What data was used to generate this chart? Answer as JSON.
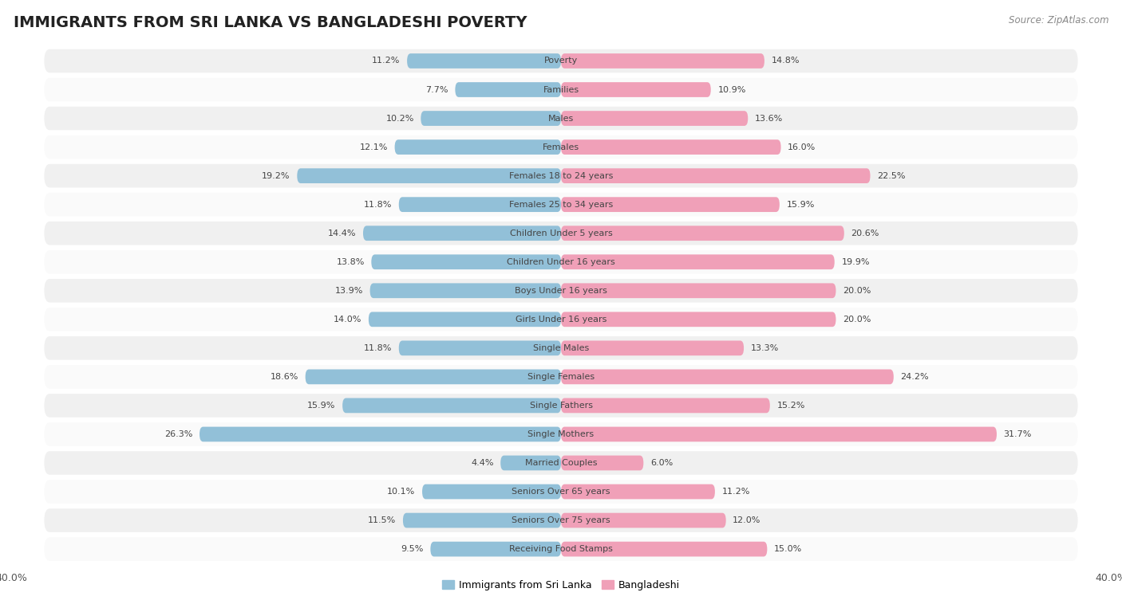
{
  "title": "IMMIGRANTS FROM SRI LANKA VS BANGLADESHI POVERTY",
  "source": "Source: ZipAtlas.com",
  "categories": [
    "Poverty",
    "Families",
    "Males",
    "Females",
    "Females 18 to 24 years",
    "Females 25 to 34 years",
    "Children Under 5 years",
    "Children Under 16 years",
    "Boys Under 16 years",
    "Girls Under 16 years",
    "Single Males",
    "Single Females",
    "Single Fathers",
    "Single Mothers",
    "Married Couples",
    "Seniors Over 65 years",
    "Seniors Over 75 years",
    "Receiving Food Stamps"
  ],
  "sri_lanka": [
    11.2,
    7.7,
    10.2,
    12.1,
    19.2,
    11.8,
    14.4,
    13.8,
    13.9,
    14.0,
    11.8,
    18.6,
    15.9,
    26.3,
    4.4,
    10.1,
    11.5,
    9.5
  ],
  "bangladeshi": [
    14.8,
    10.9,
    13.6,
    16.0,
    22.5,
    15.9,
    20.6,
    19.9,
    20.0,
    20.0,
    13.3,
    24.2,
    15.2,
    31.7,
    6.0,
    11.2,
    12.0,
    15.0
  ],
  "sri_lanka_color": "#92c0d8",
  "bangladeshi_color": "#f0a0b8",
  "row_bg_even": "#f0f0f0",
  "row_bg_odd": "#fafafa",
  "background_color": "#ffffff",
  "xlim": 40.0,
  "bar_height": 0.52,
  "label_fontsize": 8.0,
  "value_fontsize": 8.0,
  "title_fontsize": 14,
  "legend_label_sri": "Immigrants from Sri Lanka",
  "legend_label_ban": "Bangladeshi"
}
